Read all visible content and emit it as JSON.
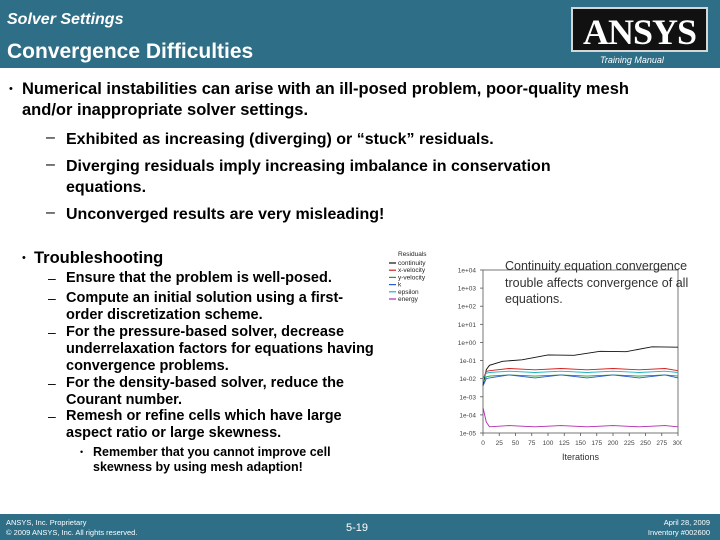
{
  "header": {
    "subtitle": "Solver Settings",
    "title": "Convergence Difficulties",
    "logo_text": "ANSYS",
    "training_manual": "Training Manual"
  },
  "bullet1": {
    "text": "Numerical instabilities can arise with an ill-posed problem, poor-quality mesh and/or inappropriate solver settings.",
    "subs": [
      "Exhibited as increasing (diverging) or “stuck” residuals.",
      "Diverging residuals imply increasing imbalance in conservation equations.",
      "Unconverged results are very misleading!"
    ]
  },
  "bullet2": {
    "text": "Troubleshooting",
    "subs": [
      "Ensure that the problem is well-posed.",
      "Compute an initial solution using a first-order discretization scheme.",
      "For the pressure-based solver, decrease underrelaxation factors for equations having convergence problems.",
      "For the density-based solver, reduce the Courant number.",
      "Remesh or refine cells which have large aspect ratio or large skewness."
    ],
    "note": "Remember that you cannot improve cell skewness by using mesh adaption!"
  },
  "caption": "Continuity equation convergence trouble affects convergence of all equations.",
  "chart_data": {
    "type": "line",
    "title": "",
    "xlabel": "Iterations",
    "ylabel": "",
    "yscale": "log",
    "x_ticks": [
      0,
      25,
      50,
      75,
      100,
      125,
      150,
      175,
      200,
      225,
      250,
      275,
      300
    ],
    "y_tick_labels": [
      "1e+04",
      "1e+03",
      "1e+02",
      "1e+01",
      "1e+00",
      "1e-01",
      "1e-02",
      "1e-03",
      "1e-04",
      "1e-05"
    ],
    "y_exponents": [
      4,
      3,
      2,
      1,
      0,
      -1,
      -2,
      -3,
      -4,
      -5
    ],
    "legend_title": "Residuals",
    "series": [
      {
        "name": "continuity",
        "color": "#111111",
        "x": [
          0,
          5,
          10,
          30,
          60,
          100,
          140,
          180,
          220,
          260,
          300
        ],
        "log_values": [
          -2.4,
          -1.5,
          -1.2,
          -1.1,
          -0.9,
          -0.75,
          -0.65,
          -0.55,
          -0.45,
          -0.3,
          -0.2
        ]
      },
      {
        "name": "x-velocity",
        "color": "#d22020",
        "x": [
          0,
          5,
          10,
          40,
          80,
          120,
          160,
          200,
          240,
          280,
          300
        ],
        "log_values": [
          -2.0,
          -1.6,
          -1.5,
          -1.5,
          -1.45,
          -1.5,
          -1.45,
          -1.5,
          -1.45,
          -1.5,
          -1.5
        ]
      },
      {
        "name": "y-velocity",
        "color": "#1d9a3a",
        "x": [
          0,
          5,
          10,
          40,
          80,
          120,
          160,
          200,
          240,
          280,
          300
        ],
        "log_values": [
          -2.2,
          -1.9,
          -1.8,
          -1.85,
          -1.8,
          -1.85,
          -1.8,
          -1.85,
          -1.8,
          -1.85,
          -1.8
        ]
      },
      {
        "name": "k",
        "color": "#2a5ad8",
        "x": [
          0,
          5,
          10,
          40,
          80,
          120,
          160,
          200,
          240,
          280,
          300
        ],
        "log_values": [
          -2.4,
          -2.0,
          -1.9,
          -1.85,
          -1.9,
          -1.85,
          -1.9,
          -1.85,
          -1.9,
          -1.85,
          -1.9
        ]
      },
      {
        "name": "epsilon",
        "color": "#1fb5c4",
        "x": [
          0,
          5,
          10,
          40,
          80,
          120,
          160,
          200,
          240,
          280,
          300
        ],
        "log_values": [
          -2.0,
          -1.7,
          -1.6,
          -1.65,
          -1.6,
          -1.65,
          -1.6,
          -1.65,
          -1.6,
          -1.65,
          -1.6
        ]
      },
      {
        "name": "energy",
        "color": "#b02ab0",
        "x": [
          0,
          5,
          10,
          40,
          80,
          120,
          160,
          200,
          240,
          280,
          300
        ],
        "log_values": [
          -3.6,
          -4.4,
          -4.6,
          -4.65,
          -4.6,
          -4.65,
          -4.6,
          -4.65,
          -4.6,
          -4.65,
          -4.6
        ]
      }
    ]
  },
  "footer": {
    "left_line1": "ANSYS, Inc. Proprietary",
    "left_line2": "© 2009 ANSYS, Inc. All rights reserved.",
    "page": "5-19",
    "date": "April 28, 2009",
    "inventory": "Inventory #002600"
  }
}
